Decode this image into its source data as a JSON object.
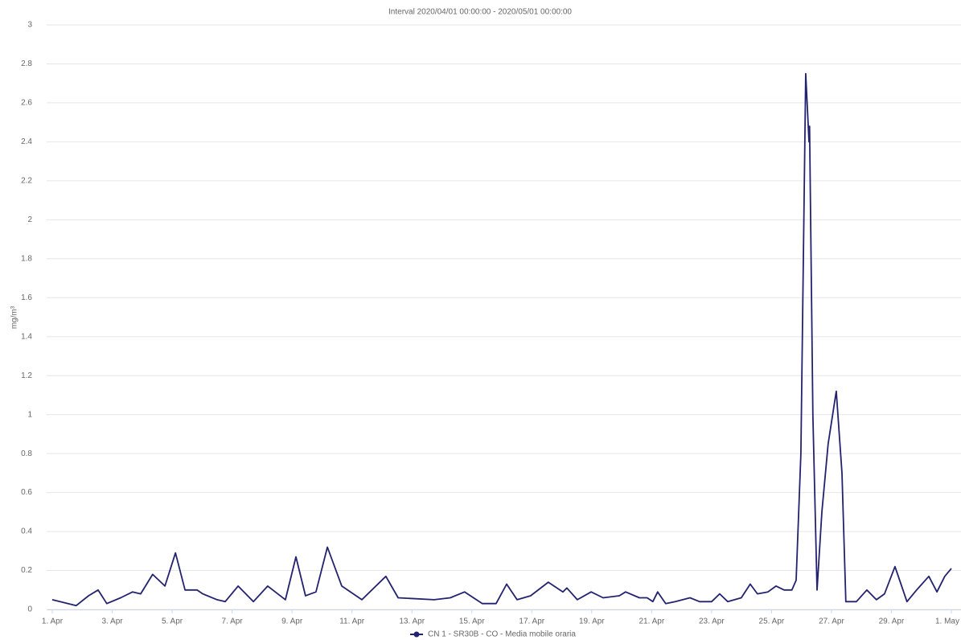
{
  "chart_data": {
    "type": "line",
    "title": "Interval 2020/04/01 00:00:00 - 2020/05/01 00:00:00",
    "y_label": "mg/m³",
    "x": [
      1.0,
      1.8,
      2.21,
      2.53,
      2.82,
      3.28,
      3.68,
      3.95,
      4.35,
      4.76,
      5.11,
      5.43,
      5.83,
      6.02,
      6.5,
      6.77,
      7.2,
      7.71,
      8.19,
      8.78,
      9.13,
      9.45,
      9.8,
      10.18,
      10.66,
      11.33,
      12.13,
      12.54,
      13.74,
      14.28,
      14.76,
      15.35,
      15.81,
      16.16,
      16.51,
      16.96,
      17.55,
      18.04,
      18.17,
      18.52,
      18.98,
      19.38,
      19.92,
      20.13,
      20.59,
      20.85,
      21.04,
      21.2,
      21.47,
      21.79,
      22.28,
      22.6,
      23.0,
      23.27,
      23.54,
      23.99,
      24.29,
      24.53,
      24.88,
      25.15,
      25.42,
      25.68,
      25.82,
      25.98,
      26.14,
      26.25,
      26.27,
      26.38,
      26.52,
      26.68,
      26.89,
      27.16,
      27.35,
      27.48,
      27.83,
      28.18,
      28.5,
      28.77,
      29.12,
      29.52,
      29.84,
      30.25,
      30.52,
      30.78,
      31.0
    ],
    "series": [
      {
        "name": "CN 1 - SR30B - CO - Media mobile oraria",
        "color": "#22226e",
        "values": [
          0.05,
          0.02,
          0.07,
          0.1,
          0.03,
          0.06,
          0.09,
          0.08,
          0.18,
          0.12,
          0.29,
          0.1,
          0.1,
          0.08,
          0.05,
          0.04,
          0.12,
          0.04,
          0.12,
          0.05,
          0.27,
          0.07,
          0.09,
          0.32,
          0.12,
          0.05,
          0.17,
          0.06,
          0.05,
          0.06,
          0.09,
          0.03,
          0.03,
          0.13,
          0.05,
          0.07,
          0.14,
          0.09,
          0.11,
          0.05,
          0.09,
          0.06,
          0.07,
          0.09,
          0.06,
          0.06,
          0.04,
          0.09,
          0.03,
          0.04,
          0.06,
          0.04,
          0.04,
          0.08,
          0.04,
          0.06,
          0.13,
          0.08,
          0.09,
          0.12,
          0.1,
          0.1,
          0.15,
          0.8,
          2.75,
          2.4,
          2.48,
          1.0,
          0.1,
          0.5,
          0.85,
          1.12,
          0.7,
          0.04,
          0.04,
          0.1,
          0.05,
          0.08,
          0.22,
          0.04,
          0.1,
          0.17,
          0.09,
          0.17,
          0.21
        ]
      }
    ],
    "xlim": [
      1,
      31
    ],
    "xticks": [
      {
        "value": 1,
        "label": "1. Apr"
      },
      {
        "value": 3,
        "label": "3. Apr"
      },
      {
        "value": 5,
        "label": "5. Apr"
      },
      {
        "value": 7,
        "label": "7. Apr"
      },
      {
        "value": 9,
        "label": "9. Apr"
      },
      {
        "value": 11,
        "label": "11. Apr"
      },
      {
        "value": 13,
        "label": "13. Apr"
      },
      {
        "value": 15,
        "label": "15. Apr"
      },
      {
        "value": 17,
        "label": "17. Apr"
      },
      {
        "value": 19,
        "label": "19. Apr"
      },
      {
        "value": 21,
        "label": "21. Apr"
      },
      {
        "value": 23,
        "label": "23. Apr"
      },
      {
        "value": 25,
        "label": "25. Apr"
      },
      {
        "value": 27,
        "label": "27. Apr"
      },
      {
        "value": 29,
        "label": "29. Apr"
      },
      {
        "value": 31,
        "label": "1. May"
      }
    ],
    "ylim": [
      0,
      3
    ],
    "yticks": [
      0,
      0.2,
      0.4,
      0.6,
      0.8,
      1,
      1.2,
      1.4,
      1.6,
      1.8,
      2,
      2.2,
      2.4,
      2.6,
      2.8,
      3
    ],
    "grid": true
  }
}
